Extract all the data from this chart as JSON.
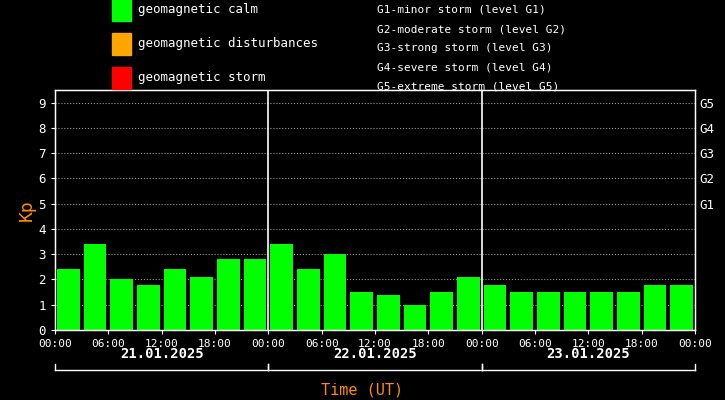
{
  "background_color": "#000000",
  "bar_color": "#00ff00",
  "text_color": "#ffffff",
  "kp_label_color": "#ff8c00",
  "time_label_color": "#ff8c00",
  "legend_items": [
    {
      "label": "geomagnetic calm",
      "color": "#00ff00"
    },
    {
      "label": "geomagnetic disturbances",
      "color": "#ffa500"
    },
    {
      "label": "geomagnetic storm",
      "color": "#ff0000"
    }
  ],
  "right_labels": [
    {
      "y": 5,
      "text": "G1"
    },
    {
      "y": 6,
      "text": "G2"
    },
    {
      "y": 7,
      "text": "G3"
    },
    {
      "y": 8,
      "text": "G4"
    },
    {
      "y": 9,
      "text": "G5"
    }
  ],
  "storm_levels": [
    "G1-minor storm (level G1)",
    "G2-moderate storm (level G2)",
    "G3-strong storm (level G3)",
    "G4-severe storm (level G4)",
    "G5-extreme storm (level G5)"
  ],
  "days": [
    "21.01.2025",
    "22.01.2025",
    "23.01.2025"
  ],
  "bar_values": [
    [
      2.4,
      3.4,
      2.0,
      1.8,
      2.4,
      2.1,
      2.8,
      2.8
    ],
    [
      3.4,
      2.4,
      3.0,
      1.5,
      1.4,
      1.0,
      1.5,
      2.1
    ],
    [
      1.8,
      1.5,
      1.5,
      1.5,
      1.5,
      1.5,
      1.8,
      1.8
    ]
  ],
  "ylim": [
    0,
    9.5
  ],
  "yticks": [
    0,
    1,
    2,
    3,
    4,
    5,
    6,
    7,
    8,
    9
  ],
  "time_labels": [
    "00:00",
    "06:00",
    "12:00",
    "18:00"
  ],
  "ylabel": "Kp",
  "xlabel": "Time (UT)",
  "bar_width": 0.85,
  "n_bars_per_day": 8
}
